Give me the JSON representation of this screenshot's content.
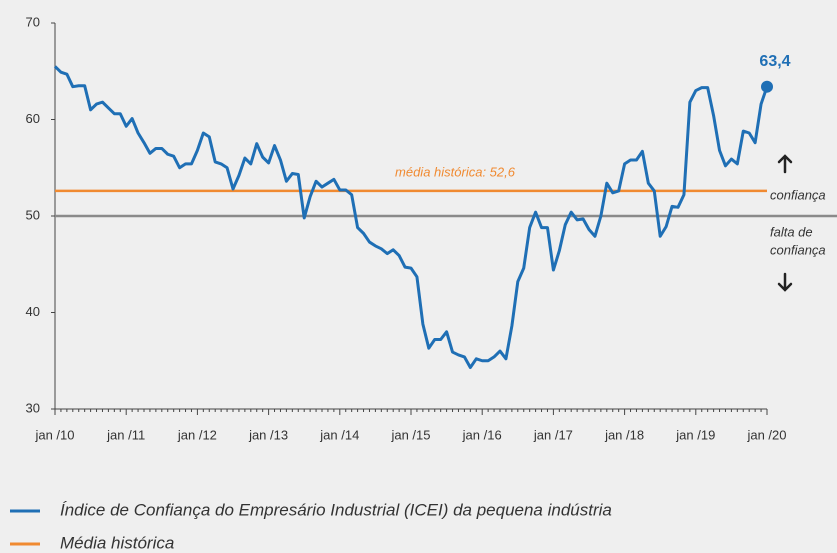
{
  "chart_data": {
    "type": "line",
    "categories": [
      "jan /10",
      null,
      null,
      null,
      null,
      null,
      null,
      null,
      null,
      null,
      null,
      null,
      "jan /11",
      null,
      null,
      null,
      null,
      null,
      null,
      null,
      null,
      null,
      null,
      null,
      "jan /12",
      null,
      null,
      null,
      null,
      null,
      null,
      null,
      null,
      null,
      null,
      null,
      "jan /13",
      null,
      null,
      null,
      null,
      null,
      null,
      null,
      null,
      null,
      null,
      null,
      "jan /14",
      null,
      null,
      null,
      null,
      null,
      null,
      null,
      null,
      null,
      null,
      null,
      "jan /15",
      null,
      null,
      null,
      null,
      null,
      null,
      null,
      null,
      null,
      null,
      null,
      "jan /16",
      null,
      null,
      null,
      null,
      null,
      null,
      null,
      null,
      null,
      null,
      null,
      "jan /17",
      null,
      null,
      null,
      null,
      null,
      null,
      null,
      null,
      null,
      null,
      null,
      "jan /18",
      null,
      null,
      null,
      null,
      null,
      null,
      null,
      null,
      null,
      null,
      null,
      "jan /19",
      null,
      null,
      null,
      null,
      null,
      null,
      null,
      null,
      null,
      null,
      null,
      "jan /20"
    ],
    "series": [
      {
        "name": "Índice de Confiança do Empresário Industrial (ICEI) da pequena indústria",
        "color": "#1f6fb5",
        "values": [
          65.5,
          64.9,
          64.7,
          63.4,
          63.5,
          63.5,
          61.0,
          61.6,
          61.8,
          61.2,
          60.6,
          60.6,
          59.3,
          60.1,
          58.6,
          57.6,
          56.5,
          57.0,
          57.0,
          56.4,
          56.2,
          55.0,
          55.4,
          55.4,
          56.8,
          58.6,
          58.2,
          55.6,
          55.4,
          55.0,
          52.8,
          54.2,
          56.0,
          55.4,
          57.5,
          56.1,
          55.5,
          57.3,
          55.8,
          53.6,
          54.4,
          54.3,
          49.8,
          52.0,
          53.6,
          53.0,
          53.4,
          53.8,
          52.7,
          52.7,
          52.2,
          48.8,
          48.2,
          47.3,
          46.9,
          46.6,
          46.1,
          46.5,
          45.9,
          44.7,
          44.6,
          43.7,
          38.8,
          36.3,
          37.2,
          37.2,
          38.0,
          35.9,
          35.6,
          35.4,
          34.3,
          35.2,
          35.0,
          35.0,
          35.4,
          36.0,
          35.2,
          38.6,
          43.2,
          44.6,
          48.8,
          50.4,
          48.8,
          48.8,
          44.4,
          46.4,
          49.1,
          50.4,
          49.6,
          49.7,
          48.6,
          47.9,
          50.0,
          53.4,
          52.4,
          52.6,
          55.4,
          55.8,
          55.8,
          56.7,
          53.4,
          52.6,
          47.9,
          48.9,
          51.0,
          50.9,
          52.2,
          61.8,
          63.0,
          63.3,
          63.3,
          60.4,
          56.8,
          55.2,
          55.9,
          55.4,
          58.8,
          58.6,
          57.6,
          61.6,
          63.4
        ],
        "value_labels": [
          null,
          null,
          null,
          null,
          null,
          null,
          null,
          null,
          null,
          null,
          null,
          null,
          null,
          null,
          null,
          null,
          null,
          null,
          null,
          null,
          null,
          null,
          null,
          null,
          null,
          null,
          null,
          null,
          null,
          null,
          null,
          null,
          null,
          null,
          null,
          null,
          null,
          null,
          null,
          null,
          null,
          null,
          null,
          null,
          null,
          null,
          null,
          null,
          null,
          null,
          null,
          null,
          null,
          null,
          null,
          null,
          null,
          null,
          null,
          null,
          null,
          null,
          null,
          null,
          null,
          null,
          null,
          null,
          null,
          null,
          null,
          null,
          null,
          null,
          null,
          null,
          null,
          null,
          null,
          null,
          null,
          null,
          null,
          null,
          null,
          null,
          null,
          null,
          null,
          null,
          null,
          null,
          null,
          null,
          null,
          null,
          null,
          null,
          null,
          null,
          null,
          null,
          null,
          null,
          null,
          null,
          null,
          null,
          null,
          null,
          null,
          null,
          null,
          null,
          null,
          null,
          null,
          null,
          null,
          null,
          "63,4"
        ]
      }
    ],
    "reference_lines": [
      {
        "name": "Média histórica",
        "value": 52.6,
        "label": "média histórica: 52,6",
        "color": "#f08a31"
      },
      {
        "value": 50,
        "color": "#8a8a8a"
      }
    ],
    "zone_labels": {
      "above": "confiança",
      "below": [
        "falta de",
        "confiança"
      ]
    },
    "ylim": [
      30,
      70
    ],
    "yticks": [
      30,
      40,
      50,
      60,
      70
    ]
  }
}
